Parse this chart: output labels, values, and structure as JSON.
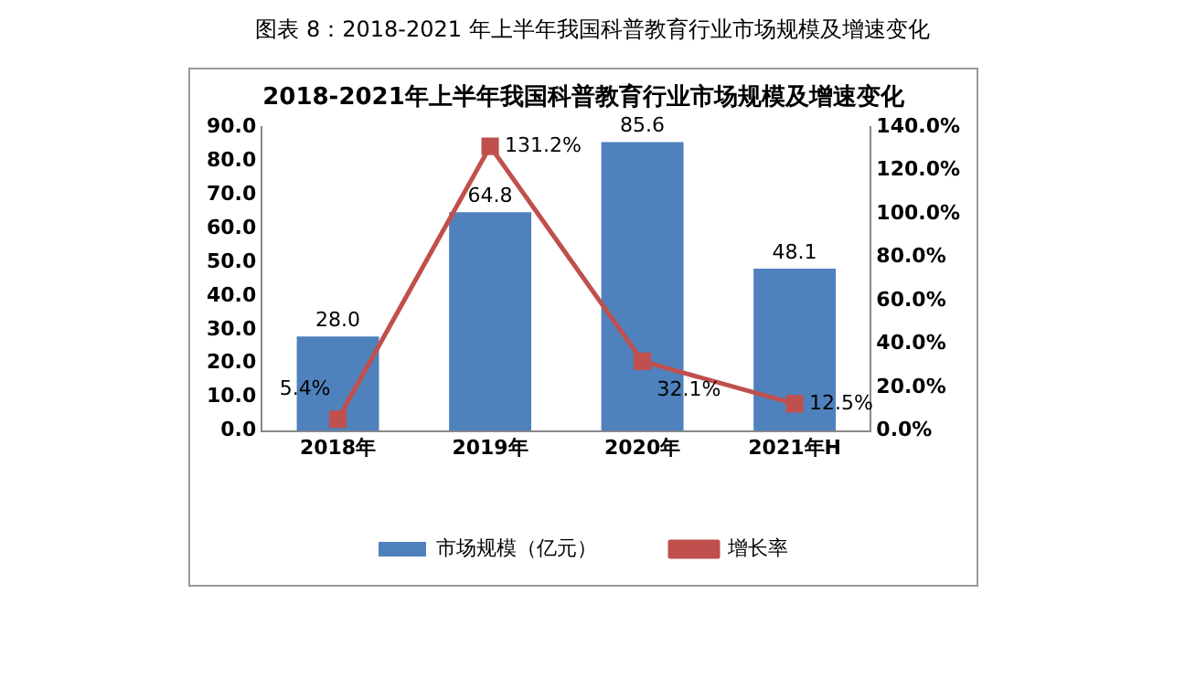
{
  "chart_data": {
    "type": "bar",
    "title": "图表 8：2018-2021 年上半年我国科普教育行业市场规模及增速变化",
    "subtitle": "2018-2021年上半年我国科普教育行业市场规模及增速变化",
    "categories": [
      "2018年",
      "2019年",
      "2020年",
      "2021年H"
    ],
    "series": [
      {
        "name": "市场规模（亿元）",
        "color": "#4f81bd",
        "values": [
          28.0,
          64.8,
          85.6,
          48.1
        ],
        "value_labels": [
          "28.0",
          "64.8",
          "85.6",
          "48.1"
        ]
      },
      {
        "name": "增长率",
        "type": "line",
        "axis": "y2",
        "color": "#c0504d",
        "values": [
          5.4,
          131.2,
          32.1,
          12.5
        ],
        "value_labels": [
          "5.4%",
          "131.2%",
          "32.1%",
          "12.5%"
        ]
      }
    ],
    "ylim": [
      0,
      90
    ],
    "yticks": [
      {
        "value": 0,
        "label": "0.0"
      },
      {
        "value": 10,
        "label": "10.0"
      },
      {
        "value": 20,
        "label": "20.0"
      },
      {
        "value": 30,
        "label": "30.0"
      },
      {
        "value": 40,
        "label": "40.0"
      },
      {
        "value": 50,
        "label": "50.0"
      },
      {
        "value": 60,
        "label": "60.0"
      },
      {
        "value": 70,
        "label": "70.0"
      },
      {
        "value": 80,
        "label": "80.0"
      },
      {
        "value": 90,
        "label": "90.0"
      }
    ],
    "y2lim": [
      0,
      140
    ],
    "y2ticks": [
      {
        "value": 0,
        "label": "0.0%"
      },
      {
        "value": 20,
        "label": "20.0%"
      },
      {
        "value": 40,
        "label": "40.0%"
      },
      {
        "value": 60,
        "label": "60.0%"
      },
      {
        "value": 80,
        "label": "80.0%"
      },
      {
        "value": 100,
        "label": "100.0%"
      },
      {
        "value": 120,
        "label": "120.0%"
      },
      {
        "value": 140,
        "label": "140.0%"
      }
    ],
    "marker": "square",
    "legend": "bottom",
    "grid": false
  }
}
